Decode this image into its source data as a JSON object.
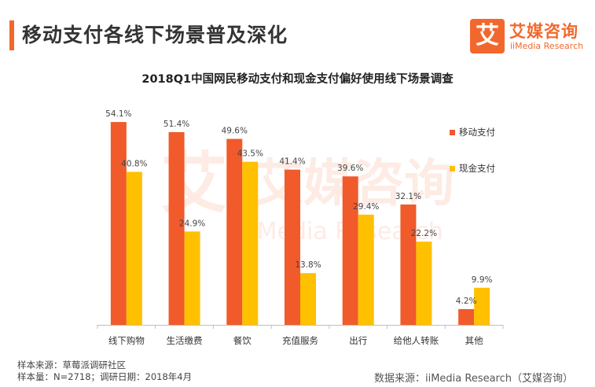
{
  "header": {
    "title": "移动支付各线下场景普及深化"
  },
  "logo": {
    "icon_char": "艾",
    "cn": "艾媒咨询",
    "en": "iiMedia Research"
  },
  "watermark": {
    "cn": "艾媒咨询",
    "en": "iiMedia Research"
  },
  "chart_data": {
    "type": "bar",
    "title": "2018Q1中国网民移动支付和现金支付偏好使用线下场景调查",
    "categories": [
      "线下购物",
      "生活缴费",
      "餐饮",
      "充值服务",
      "出行",
      "给他人转账",
      "其他"
    ],
    "series": [
      {
        "name": "移动支付",
        "color": "#f15a2b",
        "values": [
          54.1,
          51.4,
          49.6,
          41.4,
          39.6,
          32.1,
          4.2
        ]
      },
      {
        "name": "现金支付",
        "color": "#ffc000",
        "values": [
          40.8,
          24.9,
          43.5,
          13.8,
          29.4,
          22.2,
          9.9
        ]
      }
    ],
    "data_labels": {
      "移动支付": [
        "54.1%",
        "51.4%",
        "49.6%",
        "41.4%",
        "39.6%",
        "32.1%",
        "4.2%"
      ],
      "现金支付": [
        "40.8%",
        "24.9%",
        "43.5%",
        "13.8%",
        "29.4%",
        "22.2%",
        "9.9%"
      ]
    },
    "ylim": [
      0,
      60
    ],
    "xlabel": "",
    "ylabel": "",
    "legend_position": "right"
  },
  "footer": {
    "sample_source": "样本来源：草莓派调研社区",
    "sample_info": "样本量：N=2718；调研日期：2018年4月",
    "data_source": "数据来源：iiMedia Research（艾媒咨询）"
  }
}
